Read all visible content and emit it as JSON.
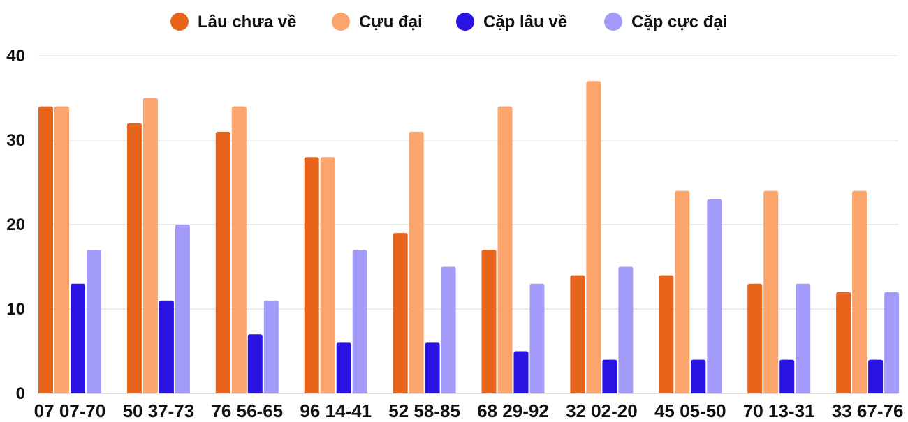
{
  "chart_data": {
    "type": "bar",
    "categories": [
      "07 07-70",
      "50 37-73",
      "76 56-65",
      "96 14-41",
      "52 58-85",
      "68 29-92",
      "32 02-20",
      "45 05-50",
      "70 13-31",
      "33 67-76"
    ],
    "series": [
      {
        "name": "Lâu chưa về",
        "color": "#E8641A",
        "values": [
          34,
          32,
          31,
          28,
          19,
          17,
          14,
          14,
          13,
          12
        ]
      },
      {
        "name": "Cựu đại",
        "color": "#FBA46B",
        "values": [
          34,
          35,
          34,
          28,
          31,
          34,
          37,
          24,
          24,
          24
        ]
      },
      {
        "name": "Cặp lâu về",
        "color": "#2A12E3",
        "values": [
          13,
          11,
          7,
          6,
          6,
          5,
          4,
          4,
          4,
          4
        ]
      },
      {
        "name": "Cặp cực đại",
        "color": "#A39BFA",
        "values": [
          17,
          20,
          11,
          17,
          15,
          13,
          15,
          23,
          13,
          12
        ]
      }
    ],
    "yticks": [
      0,
      10,
      20,
      30,
      40
    ],
    "ylim": [
      0,
      40
    ],
    "grid": true,
    "legend": "top-center"
  }
}
